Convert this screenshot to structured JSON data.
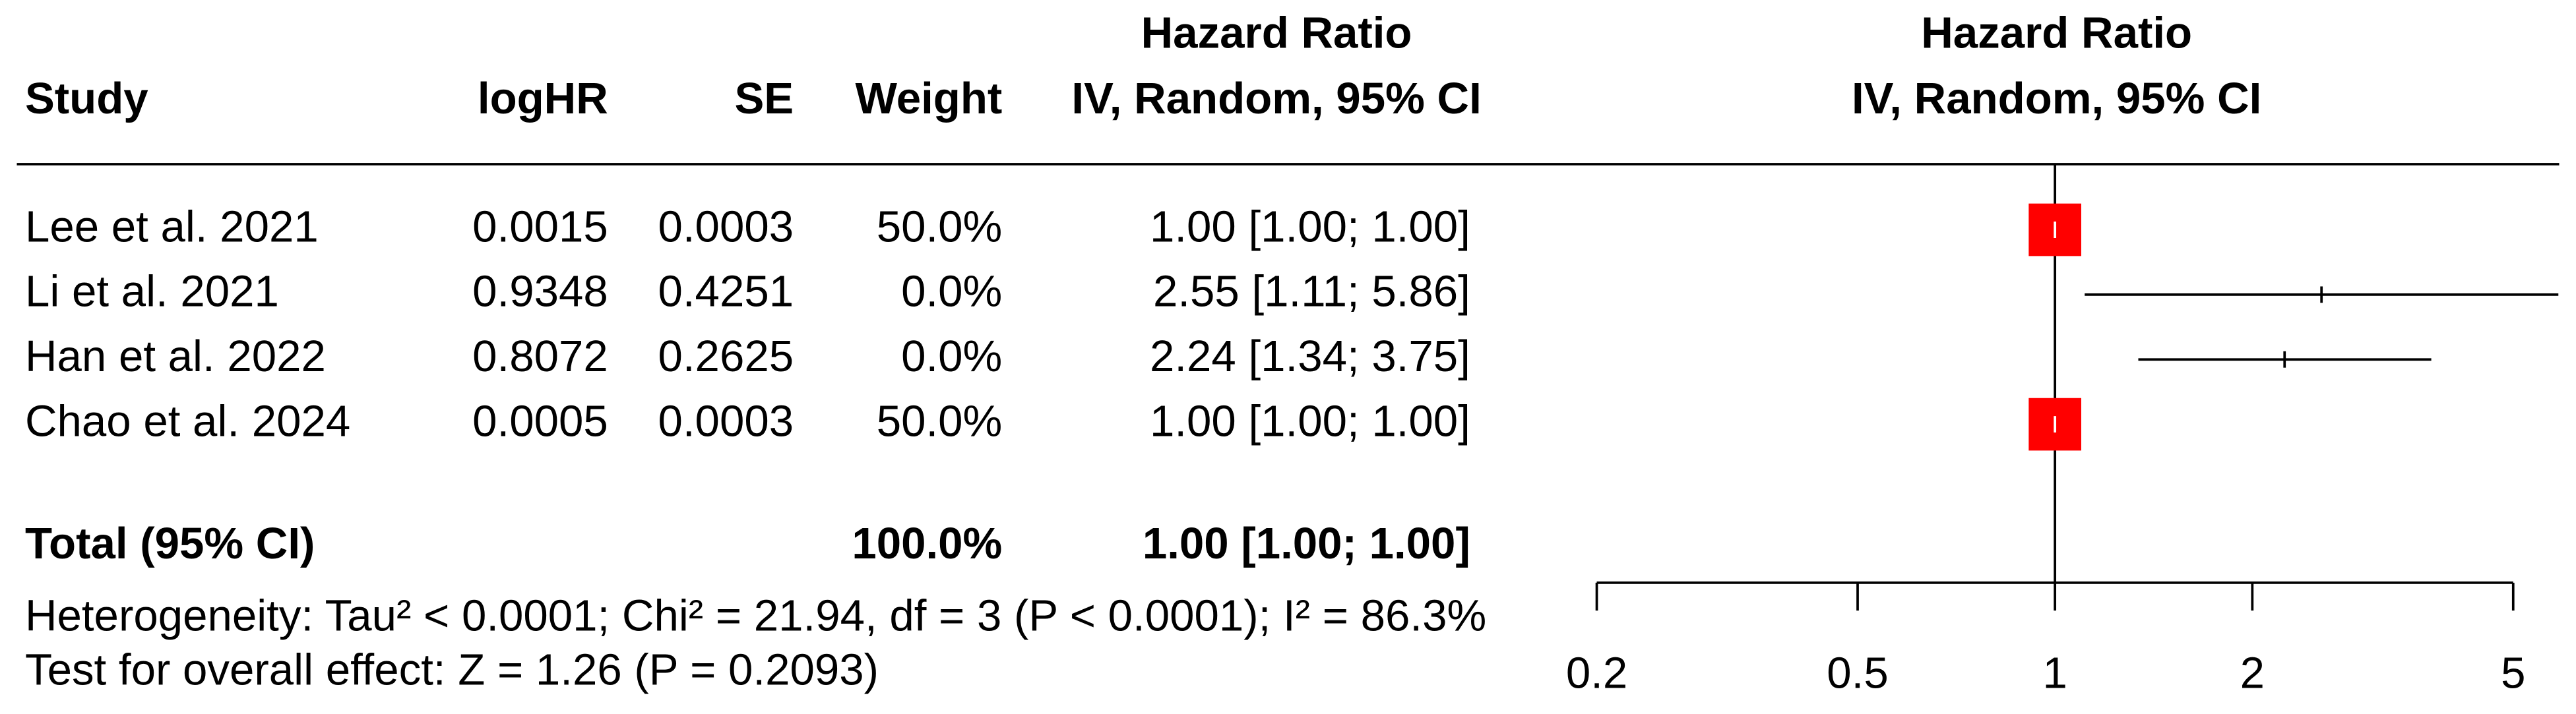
{
  "chart_data": {
    "type": "forest",
    "columns": {
      "study": "Study",
      "loghr": "logHR",
      "se": "SE",
      "weight": "Weight",
      "hr": [
        "Hazard Ratio",
        "IV, Random, 95% CI"
      ]
    },
    "plot_header": [
      "Hazard Ratio",
      "IV, Random, 95% CI"
    ],
    "studies": [
      {
        "name": "Lee et al. 2021",
        "loghr": 0.0015,
        "se": 0.0003,
        "weight": 50,
        "weight_label": "50.0%",
        "hr": 1,
        "lower": 1,
        "upper": 1,
        "ci_label": "1.00 [1.00; 1.00]"
      },
      {
        "name": "Li et al. 2021",
        "loghr": 0.9348,
        "se": 0.4251,
        "weight": 0,
        "weight_label": "0.0%",
        "hr": 2.55,
        "lower": 1.11,
        "upper": 5.86,
        "ci_label": "2.55 [1.11; 5.86]"
      },
      {
        "name": "Han et al. 2022",
        "loghr": 0.8072,
        "se": 0.2625,
        "weight": 0,
        "weight_label": "0.0%",
        "hr": 2.24,
        "lower": 1.34,
        "upper": 3.75,
        "ci_label": "2.24 [1.34; 3.75]"
      },
      {
        "name": "Chao et al. 2024",
        "loghr": 0.0005,
        "se": 0.0003,
        "weight": 50,
        "weight_label": "50.0%",
        "hr": 1,
        "lower": 1,
        "upper": 1,
        "ci_label": "1.00 [1.00; 1.00]"
      }
    ],
    "total": {
      "name": "Total (95% CI)",
      "weight": 100,
      "weight_label": "100.0%",
      "hr": 1,
      "lower": 1,
      "upper": 1,
      "ci_label": "1.00 [1.00; 1.00]"
    },
    "heterogeneity": "Heterogeneity: Tau² < 0.0001; Chi² = 21.94, df = 3 (P < 0.0001); I² = 86.3%",
    "overall_effect": "Test for overall effect: Z = 1.26 (P = 0.2093)",
    "xscale": "log",
    "xlim": [
      0.2,
      5
    ],
    "xticks": [
      0.2,
      0.5,
      1,
      2,
      5
    ],
    "ref_line": 1,
    "color": "#ff0000"
  }
}
